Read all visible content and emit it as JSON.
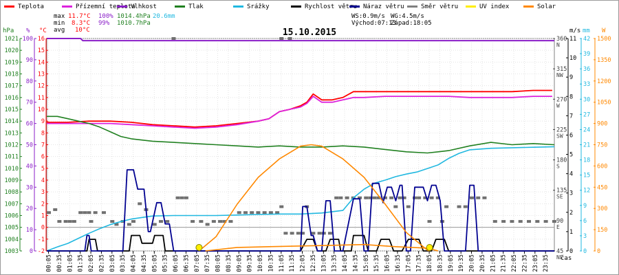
{
  "legend": [
    {
      "label": "Teplota",
      "color": "#ff0000"
    },
    {
      "label": "Přízemní teplota",
      "color": "#dd22dd"
    },
    {
      "label": "Vlhkost",
      "color": "#8a1ec8"
    },
    {
      "label": "Tlak",
      "color": "#208020"
    },
    {
      "label": "Srážky",
      "color": "#20b8e0"
    },
    {
      "label": "Rychlost větru",
      "color": "#000000"
    },
    {
      "label": "Náraz větru",
      "color": "#000090"
    },
    {
      "label": "Směr větru",
      "color": "#808080"
    },
    {
      "label": "UV index",
      "color": "#ffee00"
    },
    {
      "label": "Solar",
      "color": "#ff8800"
    }
  ],
  "stats": {
    "max_label": "max",
    "max_temp": "11.7°C",
    "max_hum": "100%",
    "max_press": "1014.4hPa",
    "max_rain": "20.6mm",
    "min_label": "min",
    "min_temp": "8.3°C",
    "min_hum": "99%",
    "min_press": "1010.7hPa",
    "avg_label": "avg",
    "avg_temp": "10°C",
    "ws": "WS:0.9m/s",
    "wg": "WG:4.5m/s",
    "sunrise": "Východ:07:13",
    "sunset": "Západ:18:05"
  },
  "chart_data": {
    "type": "line",
    "title": "15.10.2015",
    "xlabel": "čas",
    "x_ticks": [
      "00:05",
      "00:35",
      "01:05",
      "01:35",
      "02:05",
      "02:35",
      "03:05",
      "03:35",
      "04:05",
      "04:35",
      "05:05",
      "05:35",
      "06:05",
      "06:35",
      "07:05",
      "07:35",
      "08:05",
      "08:35",
      "09:05",
      "09:35",
      "10:05",
      "10:35",
      "11:05",
      "11:35",
      "12:05",
      "12:35",
      "13:05",
      "13:35",
      "14:05",
      "14:35",
      "15:05",
      "15:35",
      "16:05",
      "16:35",
      "17:05",
      "17:35",
      "18:05",
      "18:35",
      "19:05",
      "19:35",
      "20:05",
      "20:35",
      "21:05",
      "21:35",
      "22:05",
      "22:35",
      "23:05",
      "23:35"
    ],
    "axes": {
      "pressure": {
        "unit": "hPa",
        "color": "#208020",
        "ylim": [
          1003,
          1021
        ],
        "ticks": [
          "1021",
          "1020",
          "1019",
          "1018",
          "1017",
          "1016",
          "1015",
          "1014",
          "1013",
          "1012",
          "1011",
          "1010",
          "1009",
          "1008",
          "1007",
          "1006",
          "1005",
          "1004",
          "1003"
        ]
      },
      "humidity": {
        "unit": "%",
        "color": "#8a1ec8",
        "ylim": [
          0,
          100
        ],
        "ticks": [
          "100",
          "90",
          "80",
          "70",
          "60",
          "50",
          "40",
          "30",
          "20",
          "10",
          "0"
        ]
      },
      "temperature": {
        "unit": "°C",
        "color": "#ff0000",
        "ylim": [
          -2,
          16
        ],
        "ticks": [
          "16",
          "15",
          "14",
          "13",
          "12",
          "11",
          "10",
          "9",
          "8",
          "7",
          "6",
          "5",
          "4",
          "3",
          "2",
          "1",
          "0",
          "-1",
          "-2"
        ]
      },
      "wind_dir": {
        "unit": "",
        "color": "#606060",
        "ylim": [
          0,
          360
        ],
        "ticks": [
          {
            "v": "360",
            "d": "N"
          },
          {
            "v": "315",
            "d": "NW"
          },
          {
            "v": "270",
            "d": "W"
          },
          {
            "v": "225",
            "d": "SW"
          },
          {
            "v": "180",
            "d": "S"
          },
          {
            "v": "135",
            "d": "SE"
          },
          {
            "v": "90",
            "d": "E"
          },
          {
            "v": "45",
            "d": "NE"
          }
        ]
      },
      "wind_speed": {
        "unit": "m/s",
        "color": "#000000",
        "ylim": [
          0,
          11
        ],
        "ticks": [
          "11",
          "10",
          "9",
          "8",
          "7",
          "6",
          "5",
          "4",
          "3",
          "2",
          "1",
          "0"
        ]
      },
      "rain": {
        "unit": "mm",
        "color": "#20b8e0",
        "ylim": [
          0,
          42
        ],
        "ticks": [
          "42",
          "39",
          "36",
          "33",
          "30",
          "27",
          "24",
          "21",
          "18",
          "15",
          "12",
          "9",
          "6",
          "3",
          "0"
        ]
      },
      "solar": {
        "unit": "W",
        "color": "#ff8800",
        "ylim": [
          0,
          1500
        ],
        "ticks": [
          "1500",
          "1350",
          "1200",
          "1050",
          "900",
          "750",
          "600",
          "450",
          "300",
          "150",
          "0"
        ]
      }
    },
    "series": [
      {
        "name": "Teplota",
        "axis": "temperature",
        "x": [
          0,
          1,
          2,
          3,
          4,
          5,
          6,
          7,
          8,
          9,
          10,
          10.5,
          11,
          11.5,
          12,
          12.3,
          12.6,
          13,
          13.5,
          14,
          14.5,
          15,
          16,
          17,
          18,
          19,
          20,
          21,
          22,
          23,
          23.9
        ],
        "values": [
          8.9,
          8.9,
          9.0,
          9.0,
          8.9,
          8.7,
          8.6,
          8.5,
          8.6,
          8.8,
          9.0,
          9.2,
          9.8,
          10.0,
          10.3,
          10.6,
          11.3,
          10.8,
          10.8,
          11.0,
          11.5,
          11.5,
          11.5,
          11.5,
          11.5,
          11.5,
          11.5,
          11.5,
          11.5,
          11.6,
          11.6
        ]
      },
      {
        "name": "Přízemní teplota",
        "axis": "temperature",
        "x": [
          0,
          1,
          2,
          3,
          4,
          5,
          6,
          7,
          8,
          9,
          10,
          10.5,
          11,
          11.5,
          12,
          12.3,
          12.6,
          13,
          13.5,
          14,
          14.5,
          15,
          16,
          17,
          18,
          19,
          20,
          21,
          22,
          23,
          23.9
        ],
        "values": [
          8.8,
          8.8,
          8.8,
          8.8,
          8.7,
          8.6,
          8.5,
          8.4,
          8.5,
          8.7,
          9.0,
          9.2,
          9.8,
          10.0,
          10.2,
          10.5,
          11.1,
          10.6,
          10.6,
          10.8,
          11.0,
          11.0,
          11.1,
          11.1,
          11.1,
          11.1,
          11.0,
          11.0,
          11.0,
          11.1,
          11.1
        ]
      },
      {
        "name": "Vlhkost",
        "axis": "humidity",
        "x": [
          0,
          1.6,
          1.7,
          24
        ],
        "values": [
          100,
          100,
          99,
          99
        ]
      },
      {
        "name": "Tlak",
        "axis": "pressure",
        "x": [
          0,
          0.5,
          1,
          1.5,
          2,
          2.5,
          3,
          3.5,
          4,
          5,
          6,
          7,
          8,
          9,
          10,
          11,
          12,
          13,
          14,
          15,
          16,
          17,
          18,
          19,
          20,
          21,
          22,
          23,
          24
        ],
        "values": [
          1014.4,
          1014.4,
          1014.2,
          1014.0,
          1013.8,
          1013.5,
          1013.1,
          1012.7,
          1012.5,
          1012.3,
          1012.2,
          1012.1,
          1012.0,
          1011.9,
          1011.8,
          1011.9,
          1011.8,
          1011.8,
          1011.9,
          1011.8,
          1011.6,
          1011.4,
          1011.3,
          1011.5,
          1011.9,
          1012.2,
          1012.0,
          1012.1,
          1012.0
        ]
      },
      {
        "name": "Srážky",
        "axis": "rain",
        "x": [
          0,
          0.5,
          1,
          1.5,
          2,
          2.5,
          3,
          3.5,
          4,
          5,
          6,
          7,
          8,
          9,
          10,
          11,
          12,
          13,
          14,
          14.5,
          15,
          15.5,
          16,
          16.5,
          17,
          17.5,
          18,
          18.5,
          19,
          19.5,
          20,
          21,
          22,
          23,
          24
        ],
        "values": [
          0,
          0.8,
          1.5,
          2.5,
          3.5,
          4.4,
          5.2,
          5.8,
          6.3,
          6.9,
          7.0,
          7.0,
          7.0,
          7.1,
          7.2,
          7.3,
          7.3,
          7.5,
          8.0,
          10.5,
          12.2,
          13.4,
          14.0,
          14.7,
          15.2,
          15.6,
          16.3,
          17.0,
          18.3,
          19.3,
          20.0,
          20.3,
          20.4,
          20.5,
          20.6
        ]
      },
      {
        "name": "Rychlost větru",
        "axis": "wind_speed",
        "x": [
          0,
          1.9,
          2.0,
          2.3,
          2.4,
          3.9,
          4.0,
          4.4,
          4.5,
          5.0,
          5.1,
          5.5,
          5.6,
          12.0,
          12.3,
          12.6,
          12.8,
          13.2,
          13.4,
          13.8,
          13.9,
          14.4,
          14.5,
          15.0,
          15.2,
          15.6,
          15.8,
          16.2,
          16.4,
          16.8,
          17.1,
          17.6,
          17.8,
          18.2,
          18.4,
          18.8,
          19.0,
          24
        ],
        "values": [
          0,
          0,
          0.6,
          0.6,
          0,
          0,
          0.8,
          0.8,
          0.4,
          0.4,
          0.8,
          0.8,
          0,
          0,
          0.6,
          0.6,
          0,
          0,
          0.6,
          0.6,
          0,
          0,
          0.8,
          0.8,
          0,
          0,
          0.6,
          0.6,
          0,
          0,
          0.6,
          0.6,
          0,
          0,
          0.6,
          0.6,
          0,
          0
        ]
      },
      {
        "name": "Náraz větru",
        "axis": "wind_speed",
        "x": [
          0,
          1.8,
          1.9,
          2.0,
          2.1,
          3.6,
          3.8,
          4.1,
          4.3,
          4.6,
          4.8,
          4.9,
          5.2,
          5.4,
          5.6,
          5.8,
          6.0,
          12.0,
          12.1,
          12.3,
          12.5,
          12.6,
          12.8,
          13.0,
          13.2,
          13.4,
          13.6,
          13.8,
          14.0,
          14.5,
          14.8,
          15.0,
          15.2,
          15.4,
          15.5,
          15.7,
          15.9,
          16.1,
          16.3,
          16.5,
          16.7,
          16.8,
          17.0,
          17.2,
          17.4,
          17.6,
          17.8,
          18.0,
          18.2,
          18.4,
          18.6,
          18.8,
          19.0,
          19.2,
          19.4,
          19.6,
          19.8,
          20.0,
          20.2,
          20.4,
          20.6,
          24
        ],
        "values": [
          0,
          0,
          0.8,
          0.8,
          0,
          0,
          4.2,
          4.2,
          3.2,
          3.2,
          1.0,
          1.0,
          2.5,
          2.5,
          1.4,
          1.4,
          0,
          0,
          2.3,
          2.3,
          0.8,
          0.8,
          0,
          0,
          2.6,
          2.6,
          0,
          0,
          0,
          2.7,
          2.7,
          0,
          0,
          3.5,
          3.5,
          3.5,
          2.5,
          3.3,
          3.3,
          2.6,
          3.4,
          3.4,
          0,
          0,
          3.3,
          3.3,
          3.3,
          2.6,
          3.4,
          3.4,
          2.6,
          0,
          0,
          0,
          0,
          0,
          0,
          3.4,
          3.4,
          0,
          0,
          0
        ]
      },
      {
        "name": "Solar",
        "axis": "solar",
        "x": [
          7.2,
          8,
          9,
          10,
          11,
          12,
          12.5,
          13,
          14,
          15,
          16,
          17,
          18,
          18.1
        ],
        "values": [
          0,
          100,
          330,
          520,
          650,
          740,
          750,
          740,
          650,
          520,
          330,
          130,
          5,
          0
        ]
      },
      {
        "name": "Solar (low)",
        "axis": "solar",
        "x": [
          7.5,
          9,
          10.5,
          12,
          13.5,
          15,
          16.5,
          18,
          18.5
        ],
        "values": [
          0,
          25,
          30,
          35,
          40,
          45,
          30,
          20,
          0
        ]
      }
    ],
    "wind_direction_points": [
      {
        "x": 0.0,
        "v": 65
      },
      {
        "x": 0.3,
        "v": 70
      },
      {
        "x": 0.5,
        "v": 50
      },
      {
        "x": 0.8,
        "v": 50
      },
      {
        "x": 1.0,
        "v": 50
      },
      {
        "x": 1.2,
        "v": 50
      },
      {
        "x": 1.5,
        "v": 65
      },
      {
        "x": 1.7,
        "v": 65
      },
      {
        "x": 1.9,
        "v": 65
      },
      {
        "x": 2.0,
        "v": 50
      },
      {
        "x": 2.2,
        "v": 65
      },
      {
        "x": 2.6,
        "v": 65
      },
      {
        "x": 3.0,
        "v": 50
      },
      {
        "x": 3.2,
        "v": 45
      },
      {
        "x": 3.5,
        "v": 50
      },
      {
        "x": 3.8,
        "v": 45
      },
      {
        "x": 4.0,
        "v": 50
      },
      {
        "x": 4.3,
        "v": 80
      },
      {
        "x": 4.6,
        "v": 70
      },
      {
        "x": 5.0,
        "v": 45
      },
      {
        "x": 5.3,
        "v": 50
      },
      {
        "x": 5.6,
        "v": 50
      },
      {
        "x": 6.1,
        "v": 90
      },
      {
        "x": 6.3,
        "v": 90
      },
      {
        "x": 6.5,
        "v": 90
      },
      {
        "x": 6.8,
        "v": 50
      },
      {
        "x": 7.2,
        "v": 50
      },
      {
        "x": 7.5,
        "v": 45
      },
      {
        "x": 7.8,
        "v": 50
      },
      {
        "x": 8.1,
        "v": 50
      },
      {
        "x": 8.3,
        "v": 50
      },
      {
        "x": 8.6,
        "v": 50
      },
      {
        "x": 9.0,
        "v": 65
      },
      {
        "x": 9.3,
        "v": 65
      },
      {
        "x": 9.6,
        "v": 65
      },
      {
        "x": 9.9,
        "v": 65
      },
      {
        "x": 10.2,
        "v": 65
      },
      {
        "x": 10.5,
        "v": 65
      },
      {
        "x": 10.8,
        "v": 65
      },
      {
        "x": 11.0,
        "v": 75
      },
      {
        "x": 11.2,
        "v": 30
      },
      {
        "x": 11.5,
        "v": 30
      },
      {
        "x": 11.8,
        "v": 30
      },
      {
        "x": 12.0,
        "v": 30
      },
      {
        "x": 12.2,
        "v": 75
      },
      {
        "x": 12.5,
        "v": 30
      },
      {
        "x": 12.8,
        "v": 30
      },
      {
        "x": 13.0,
        "v": 30
      },
      {
        "x": 13.3,
        "v": 30
      },
      {
        "x": 13.6,
        "v": 90
      },
      {
        "x": 13.8,
        "v": 90
      },
      {
        "x": 14.1,
        "v": 90
      },
      {
        "x": 14.4,
        "v": 90
      },
      {
        "x": 14.7,
        "v": 90
      },
      {
        "x": 15.0,
        "v": 90
      },
      {
        "x": 15.2,
        "v": 90
      },
      {
        "x": 15.4,
        "v": 90
      },
      {
        "x": 15.6,
        "v": 90
      },
      {
        "x": 15.9,
        "v": 90
      },
      {
        "x": 16.2,
        "v": 90
      },
      {
        "x": 16.4,
        "v": 75
      },
      {
        "x": 16.6,
        "v": 90
      },
      {
        "x": 16.8,
        "v": 90
      },
      {
        "x": 17.0,
        "v": 75
      },
      {
        "x": 17.3,
        "v": 90
      },
      {
        "x": 17.5,
        "v": 90
      },
      {
        "x": 17.8,
        "v": 90
      },
      {
        "x": 18.0,
        "v": 50
      },
      {
        "x": 18.1,
        "v": 90
      },
      {
        "x": 18.4,
        "v": 90
      },
      {
        "x": 18.6,
        "v": 50
      },
      {
        "x": 18.8,
        "v": 75
      },
      {
        "x": 19.4,
        "v": 75
      },
      {
        "x": 19.7,
        "v": 75
      },
      {
        "x": 20.0,
        "v": 90
      },
      {
        "x": 20.3,
        "v": 90
      },
      {
        "x": 20.6,
        "v": 90
      },
      {
        "x": 21.1,
        "v": 50
      },
      {
        "x": 21.5,
        "v": 50
      },
      {
        "x": 21.9,
        "v": 50
      },
      {
        "x": 22.3,
        "v": 50
      },
      {
        "x": 22.7,
        "v": 50
      },
      {
        "x": 23.1,
        "v": 50
      },
      {
        "x": 23.5,
        "v": 50
      },
      {
        "x": 23.9,
        "v": 50
      }
    ],
    "wind_direction_top_points": [
      {
        "x": 5.9,
        "v": 360
      },
      {
        "x": 11.0,
        "v": 360
      },
      {
        "x": 11.4,
        "v": 360
      }
    ],
    "markers": [
      {
        "x": 7.2,
        "label": "sunrise"
      },
      {
        "x": 18.1,
        "label": "sunset"
      }
    ],
    "grid": true
  }
}
